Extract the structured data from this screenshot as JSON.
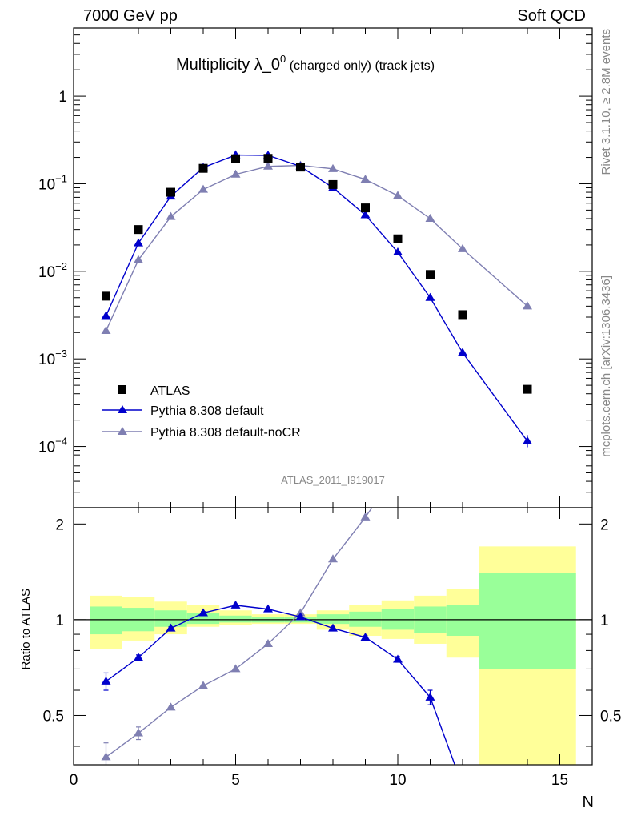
{
  "header": {
    "left": "7000 GeV pp",
    "right": "Soft QCD",
    "title_main": "Multiplicity λ_0",
    "title_sup": "0",
    "title_rest": " (charged only) (track jets)",
    "analysis": "ATLAS_2011_I919017",
    "side_top": "Rivet 3.1.10, ≥ 2.8M events",
    "side_bottom": "mcplots.cern.ch [arXiv:1306.3436]"
  },
  "colors": {
    "data": "#000000",
    "default": "#0000cc",
    "nocr": "#7f7fb2",
    "band_inner": "#99ff99",
    "band_outer": "#ffff99"
  },
  "chart_data": [
    {
      "type": "scatter",
      "yscale": "log",
      "ylim": [
        2e-05,
        6
      ],
      "xlim": [
        0,
        16
      ],
      "y_ticks": [
        {
          "v": 1,
          "base": "1",
          "exp": ""
        },
        {
          "v": 0.1,
          "base": "10",
          "exp": "−1"
        },
        {
          "v": 0.01,
          "base": "10",
          "exp": "−2"
        },
        {
          "v": 0.001,
          "base": "10",
          "exp": "−3"
        },
        {
          "v": 0.0001,
          "base": "10",
          "exp": "−4"
        }
      ],
      "legend": [
        "ATLAS",
        "Pythia 8.308 default",
        "Pythia 8.308 default-noCR"
      ],
      "series": [
        {
          "name": "ATLAS",
          "x": [
            1,
            2,
            3,
            4,
            5,
            6,
            7,
            8,
            9,
            10,
            11,
            12,
            14
          ],
          "y": [
            0.0052,
            0.03,
            0.08,
            0.15,
            0.193,
            0.195,
            0.155,
            0.098,
            0.053,
            0.0235,
            0.0092,
            0.0032,
            0.00045
          ]
        },
        {
          "name": "Pythia 8.308 default",
          "x": [
            1,
            2,
            3,
            4,
            5,
            6,
            7,
            8,
            9,
            10,
            11,
            12,
            14
          ],
          "y": [
            0.0031,
            0.021,
            0.072,
            0.153,
            0.213,
            0.211,
            0.158,
            0.09,
            0.044,
            0.0165,
            0.005,
            0.00118,
            0.000115
          ]
        },
        {
          "name": "Pythia 8.308 default-noCR",
          "x": [
            1,
            2,
            3,
            4,
            5,
            6,
            7,
            8,
            9,
            10,
            11,
            12,
            14
          ],
          "y": [
            0.0021,
            0.0135,
            0.042,
            0.086,
            0.128,
            0.158,
            0.162,
            0.148,
            0.112,
            0.073,
            0.04,
            0.018,
            0.004
          ]
        }
      ]
    },
    {
      "type": "line",
      "ylabel": "Ratio to ATLAS",
      "xlabel": "N",
      "ylim": [
        0.35,
        2.25
      ],
      "xlim": [
        0,
        16
      ],
      "x_ticks": [
        "0",
        "5",
        "10",
        "15"
      ],
      "y_ticks": [
        "0.5",
        "1",
        "2"
      ],
      "bands": [
        {
          "x0": 0.5,
          "x1": 1.5,
          "in_lo": 0.9,
          "in_hi": 1.1,
          "out_lo": 0.81,
          "out_hi": 1.19
        },
        {
          "x0": 1.5,
          "x1": 2.5,
          "in_lo": 0.92,
          "in_hi": 1.09,
          "out_lo": 0.86,
          "out_hi": 1.18
        },
        {
          "x0": 2.5,
          "x1": 3.5,
          "in_lo": 0.95,
          "in_hi": 1.07,
          "out_lo": 0.9,
          "out_hi": 1.14
        },
        {
          "x0": 3.5,
          "x1": 4.5,
          "in_lo": 0.97,
          "in_hi": 1.05,
          "out_lo": 0.95,
          "out_hi": 1.11
        },
        {
          "x0": 4.5,
          "x1": 5.5,
          "in_lo": 0.98,
          "in_hi": 1.03,
          "out_lo": 0.96,
          "out_hi": 1.07
        },
        {
          "x0": 5.5,
          "x1": 6.5,
          "in_lo": 0.98,
          "in_hi": 1.02,
          "out_lo": 0.97,
          "out_hi": 1.04
        },
        {
          "x0": 6.5,
          "x1": 7.5,
          "in_lo": 0.98,
          "in_hi": 1.02,
          "out_lo": 0.97,
          "out_hi": 1.04
        },
        {
          "x0": 7.5,
          "x1": 8.5,
          "in_lo": 0.97,
          "in_hi": 1.04,
          "out_lo": 0.93,
          "out_hi": 1.07
        },
        {
          "x0": 8.5,
          "x1": 9.5,
          "in_lo": 0.95,
          "in_hi": 1.06,
          "out_lo": 0.89,
          "out_hi": 1.11
        },
        {
          "x0": 9.5,
          "x1": 10.5,
          "in_lo": 0.93,
          "in_hi": 1.08,
          "out_lo": 0.87,
          "out_hi": 1.15
        },
        {
          "x0": 10.5,
          "x1": 11.5,
          "in_lo": 0.91,
          "in_hi": 1.1,
          "out_lo": 0.84,
          "out_hi": 1.19
        },
        {
          "x0": 11.5,
          "x1": 12.5,
          "in_lo": 0.89,
          "in_hi": 1.11,
          "out_lo": 0.76,
          "out_hi": 1.25
        },
        {
          "x0": 12.5,
          "x1": 15.5,
          "in_lo": 0.7,
          "in_hi": 1.4,
          "out_lo": 0.3,
          "out_hi": 1.7
        }
      ],
      "series": [
        {
          "name": "Pythia 8.308 default",
          "x": [
            1,
            2,
            3,
            4,
            5,
            6,
            7,
            8,
            9,
            10,
            11,
            12
          ],
          "y": [
            0.64,
            0.76,
            0.94,
            1.05,
            1.11,
            1.08,
            1.02,
            0.94,
            0.88,
            0.75,
            0.57,
            0.3
          ],
          "err": [
            0.04,
            0.015,
            0.01,
            0.01,
            0.01,
            0.01,
            0.01,
            0.01,
            0.01,
            0.015,
            0.03,
            0
          ]
        },
        {
          "name": "Pythia 8.308 default-noCR",
          "x": [
            1,
            2,
            3,
            4,
            5,
            6,
            7,
            8,
            9,
            10
          ],
          "y": [
            0.37,
            0.44,
            0.53,
            0.62,
            0.7,
            0.84,
            1.05,
            1.55,
            2.1,
            2.95
          ],
          "err": [
            0.04,
            0.02,
            0,
            0,
            0,
            0,
            0,
            0,
            0,
            0
          ]
        }
      ]
    }
  ]
}
